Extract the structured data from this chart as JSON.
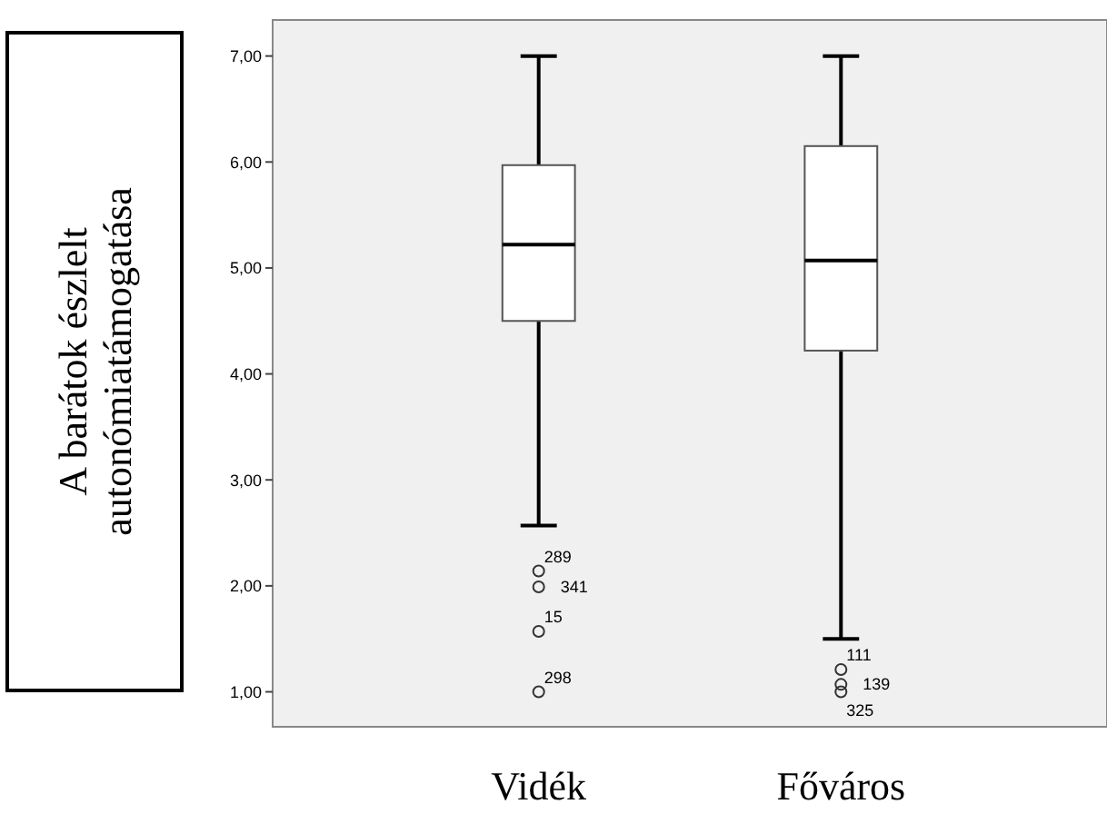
{
  "chart_data": {
    "type": "box",
    "ylabel": "A barátok észlelt\nautonómiatámogatása",
    "categories": [
      "Vidék",
      "Főváros"
    ],
    "boxes": [
      {
        "low": 2.57,
        "q1": 4.5,
        "median": 5.22,
        "q3": 5.97,
        "high": 7,
        "outliers": [
          2.14,
          1.99,
          1.57,
          1.0
        ]
      },
      {
        "low": 1.5,
        "q1": 4.22,
        "median": 5.07,
        "q3": 6.15,
        "high": 7,
        "outliers": [
          1.21,
          1.07,
          1.0
        ]
      }
    ],
    "ylim": [
      0.67,
      7.34
    ],
    "yticks": [
      {
        "value": 1,
        "label": "1,00"
      },
      {
        "value": 2,
        "label": "2,00"
      },
      {
        "value": 3,
        "label": "3,00"
      },
      {
        "value": 4,
        "label": "4,00"
      },
      {
        "value": 5,
        "label": "5,00"
      },
      {
        "value": 6,
        "label": "6,00"
      },
      {
        "value": 7,
        "label": "7,00"
      }
    ],
    "grid": false,
    "annotations": [
      "289",
      "341",
      "15",
      "298",
      "111",
      "139",
      "325"
    ]
  }
}
